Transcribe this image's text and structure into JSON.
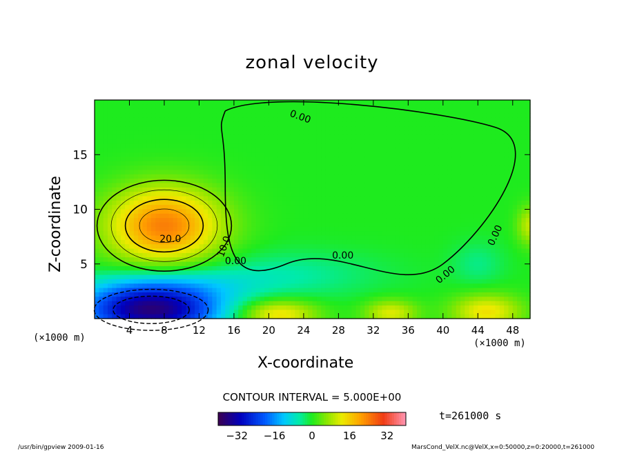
{
  "chart_data": {
    "type": "heatmap",
    "title": "zonal velocity",
    "xlabel": "X-coordinate",
    "ylabel": "Z-coordinate",
    "x_unit": "(×1000 m)",
    "z_unit": "(×1000 m)",
    "xlim": [
      0,
      50
    ],
    "ylim": [
      0,
      20
    ],
    "x_ticks": [
      4,
      8,
      12,
      16,
      20,
      24,
      28,
      32,
      36,
      40,
      44,
      48
    ],
    "y_ticks": [
      5,
      10,
      15
    ],
    "contour_interval_text": "CONTOUR INTERVAL = 5.000E+00",
    "contour_labels": [
      "20.0",
      "10.0",
      "0.00",
      "0.00",
      "0.00",
      "0.00",
      "0.00"
    ],
    "colorbar": {
      "range": [
        -40,
        40
      ],
      "ticks": [
        -32,
        -16,
        0,
        16,
        32
      ]
    },
    "features": [
      {
        "kind": "max",
        "x": 8,
        "z": 8.5,
        "value": 24,
        "rx": 6.5,
        "rz": 3.5
      },
      {
        "kind": "min",
        "x": 6.5,
        "z": 0.8,
        "value": -36,
        "rx": 8,
        "rz": 2.3
      },
      {
        "kind": "min",
        "x": 9,
        "z": 3.2,
        "value": -6,
        "rx": 10,
        "rz": 1.6
      },
      {
        "kind": "max",
        "x": 21,
        "z": 0.4,
        "value": 15,
        "rx": 4.5,
        "rz": 1.3
      },
      {
        "kind": "max",
        "x": 34,
        "z": 0.5,
        "value": 12,
        "rx": 3,
        "rz": 1.2
      },
      {
        "kind": "max",
        "x": 45,
        "z": 0.6,
        "value": 14,
        "rx": 4,
        "rz": 1.6
      },
      {
        "kind": "min",
        "x": 22,
        "z": 4,
        "value": -5,
        "rx": 11,
        "rz": 2.2
      },
      {
        "kind": "min",
        "x": 44,
        "z": 5,
        "value": -4,
        "rx": 3,
        "rz": 2
      },
      {
        "kind": "max",
        "x": 50,
        "z": 8.5,
        "value": 10,
        "rx": 1.5,
        "rz": 1.8
      }
    ],
    "time_label": "t=261000  s"
  },
  "footer": {
    "left": "/usr/bin/gpview  2009-01-16",
    "right": "MarsCond_VelX.nc@VelX,x=0:50000,z=0:20000,t=261000"
  }
}
